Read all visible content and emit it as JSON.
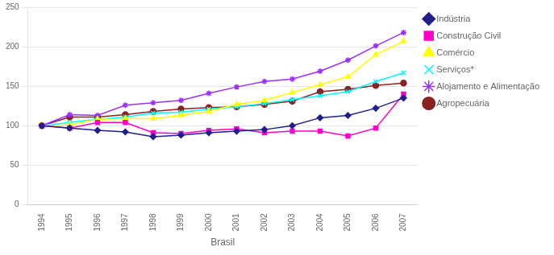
{
  "chart_data": {
    "type": "line",
    "x_label": "Brasil",
    "x": [
      1994,
      1995,
      1996,
      1997,
      1998,
      1999,
      2000,
      2001,
      2002,
      2003,
      2004,
      2005,
      2006,
      2007
    ],
    "series": [
      {
        "name": "Indústria",
        "color": "#1F1F8C",
        "marker": "diamond",
        "values": [
          100,
          97,
          94,
          92,
          86,
          88,
          91,
          93,
          95,
          100,
          110,
          113,
          122,
          135
        ]
      },
      {
        "name": "Construção Civil",
        "color": "#FF00CC",
        "marker": "square",
        "values": [
          100,
          97,
          104,
          104,
          91,
          90,
          94,
          96,
          91,
          93,
          93,
          87,
          97,
          140
        ]
      },
      {
        "name": "Comércio",
        "color": "#FFFF00",
        "marker": "triangle",
        "values": [
          100,
          101,
          108,
          109,
          109,
          113,
          118,
          127,
          132,
          142,
          152,
          162,
          190,
          207
        ]
      },
      {
        "name": "Serviços*",
        "color": "#00FFFF",
        "marker": "x",
        "values": [
          100,
          104,
          108,
          111,
          116,
          117,
          121,
          124,
          128,
          133,
          138,
          143,
          156,
          167
        ]
      },
      {
        "name": "Alojamento e Alimentação",
        "color": "#9B30FF",
        "marker": "star",
        "values": [
          100,
          114,
          113,
          126,
          129,
          132,
          141,
          149,
          156,
          159,
          169,
          183,
          201,
          218
        ]
      },
      {
        "name": "Agropecuária",
        "color": "#8B2222",
        "marker": "circle",
        "values": [
          100,
          111,
          111,
          114,
          118,
          121,
          123,
          124,
          127,
          131,
          143,
          146,
          151,
          154
        ]
      }
    ],
    "xlim": [
      1993.5,
      2007.5
    ],
    "xticks": [
      1994,
      1995,
      1996,
      1997,
      1998,
      1999,
      2000,
      2001,
      2002,
      2003,
      2004,
      2005,
      2006,
      2007
    ],
    "ylim": [
      0,
      250
    ],
    "yticks": [
      0,
      50,
      100,
      150,
      200,
      250
    ],
    "grid": true,
    "legend": "right"
  }
}
